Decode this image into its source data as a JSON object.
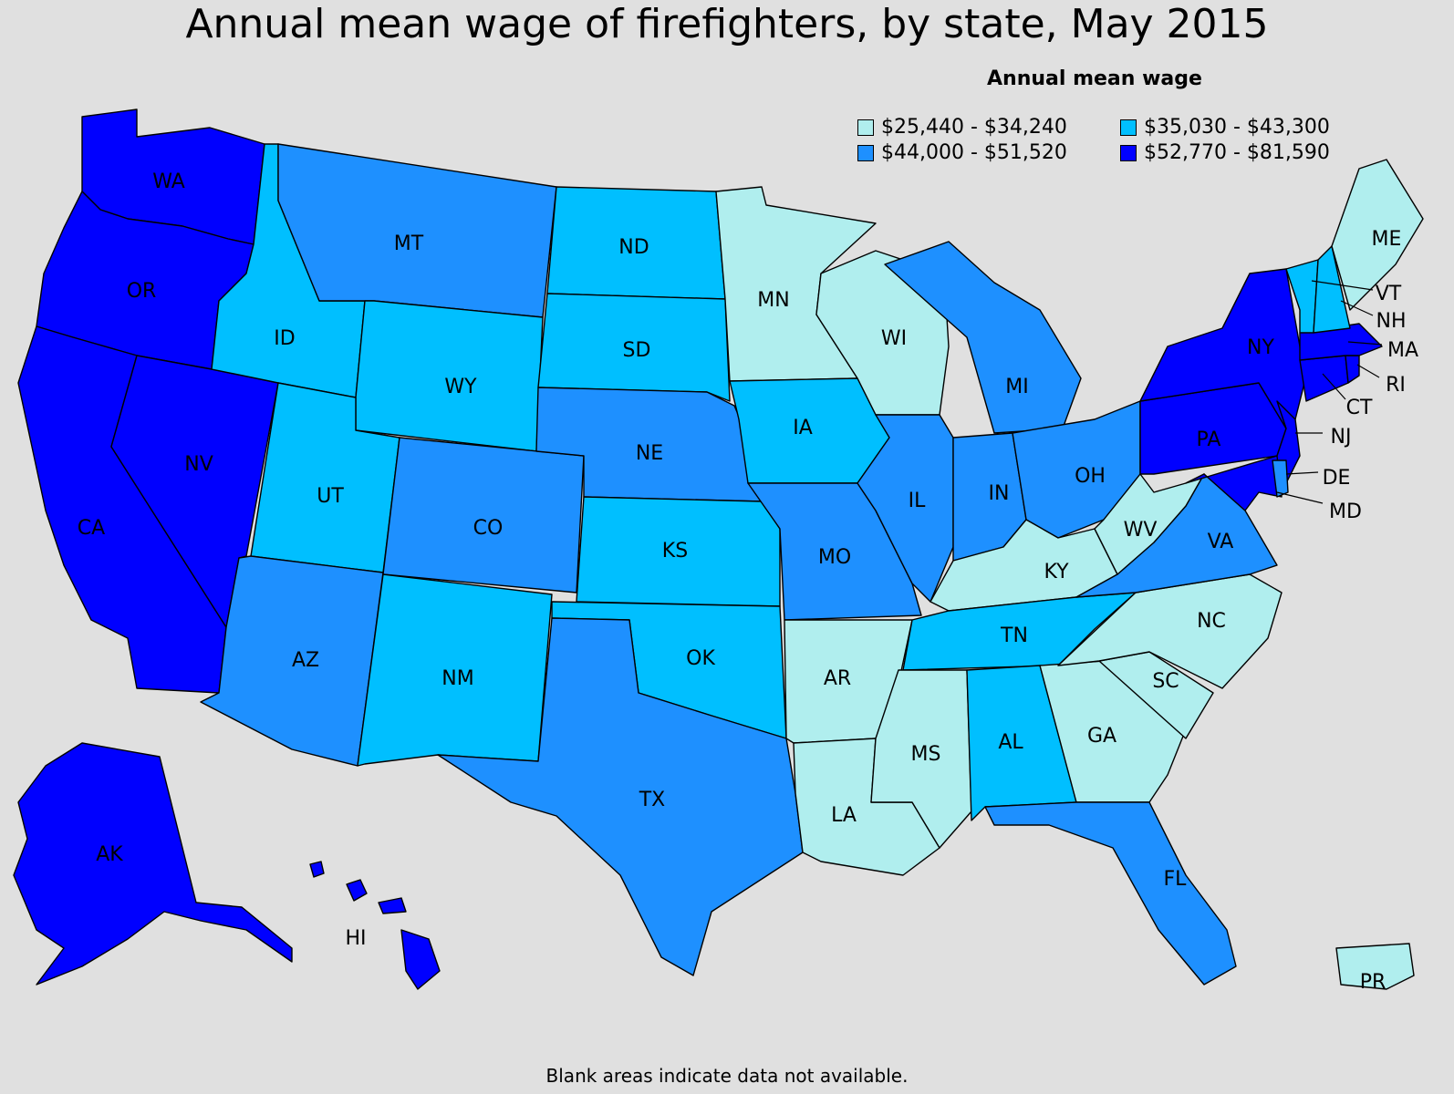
{
  "title": "Annual mean wage of firefighters, by state, May 2015",
  "legend": {
    "title": "Annual mean wage",
    "classes": [
      {
        "id": "c1",
        "label": "$25,440 - $34,240",
        "color": "#b0eeee"
      },
      {
        "id": "c2",
        "label": "$35,030 - $43,300",
        "color": "#00bfff"
      },
      {
        "id": "c3",
        "label": "$44,000 - $51,520",
        "color": "#1e90ff"
      },
      {
        "id": "c4",
        "label": "$52,770 - $81,590",
        "color": "#0000ff"
      }
    ]
  },
  "states": {
    "WA": {
      "label": "WA",
      "class": "c4"
    },
    "OR": {
      "label": "OR",
      "class": "c4"
    },
    "CA": {
      "label": "CA",
      "class": "c4"
    },
    "NV": {
      "label": "NV",
      "class": "c4"
    },
    "ID": {
      "label": "ID",
      "class": "c2"
    },
    "MT": {
      "label": "MT",
      "class": "c3"
    },
    "WY": {
      "label": "WY",
      "class": "c2"
    },
    "UT": {
      "label": "UT",
      "class": "c2"
    },
    "AZ": {
      "label": "AZ",
      "class": "c3"
    },
    "CO": {
      "label": "CO",
      "class": "c3"
    },
    "NM": {
      "label": "NM",
      "class": "c2"
    },
    "ND": {
      "label": "ND",
      "class": "c2"
    },
    "SD": {
      "label": "SD",
      "class": "c2"
    },
    "NE": {
      "label": "NE",
      "class": "c3"
    },
    "KS": {
      "label": "KS",
      "class": "c2"
    },
    "OK": {
      "label": "OK",
      "class": "c2"
    },
    "TX": {
      "label": "TX",
      "class": "c3"
    },
    "MN": {
      "label": "MN",
      "class": "c1"
    },
    "IA": {
      "label": "IA",
      "class": "c2"
    },
    "MO": {
      "label": "MO",
      "class": "c3"
    },
    "AR": {
      "label": "AR",
      "class": "c1"
    },
    "LA": {
      "label": "LA",
      "class": "c1"
    },
    "WI": {
      "label": "WI",
      "class": "c1"
    },
    "IL": {
      "label": "IL",
      "class": "c3"
    },
    "MI": {
      "label": "MI",
      "class": "c3"
    },
    "IN": {
      "label": "IN",
      "class": "c3"
    },
    "OH": {
      "label": "OH",
      "class": "c3"
    },
    "KY": {
      "label": "KY",
      "class": "c1"
    },
    "TN": {
      "label": "TN",
      "class": "c2"
    },
    "MS": {
      "label": "MS",
      "class": "c1"
    },
    "AL": {
      "label": "AL",
      "class": "c2"
    },
    "GA": {
      "label": "GA",
      "class": "c1"
    },
    "FL": {
      "label": "FL",
      "class": "c3"
    },
    "SC": {
      "label": "SC",
      "class": "c1"
    },
    "NC": {
      "label": "NC",
      "class": "c1"
    },
    "VA": {
      "label": "VA",
      "class": "c3"
    },
    "WV": {
      "label": "WV",
      "class": "c1"
    },
    "PA": {
      "label": "PA",
      "class": "c4"
    },
    "NY": {
      "label": "NY",
      "class": "c4"
    },
    "NJ": {
      "label": "NJ",
      "class": "c4"
    },
    "DE": {
      "label": "DE",
      "class": "c3"
    },
    "MD": {
      "label": "MD",
      "class": "c4"
    },
    "CT": {
      "label": "CT",
      "class": "c4"
    },
    "RI": {
      "label": "RI",
      "class": "c4"
    },
    "MA": {
      "label": "MA",
      "class": "c4"
    },
    "VT": {
      "label": "VT",
      "class": "c2"
    },
    "NH": {
      "label": "NH",
      "class": "c2"
    },
    "ME": {
      "label": "ME",
      "class": "c1"
    },
    "AK": {
      "label": "AK",
      "class": "c4"
    },
    "HI": {
      "label": "HI",
      "class": "c4"
    },
    "PR": {
      "label": "PR",
      "class": "c1"
    }
  },
  "footnote": "Blank areas indicate data not available."
}
